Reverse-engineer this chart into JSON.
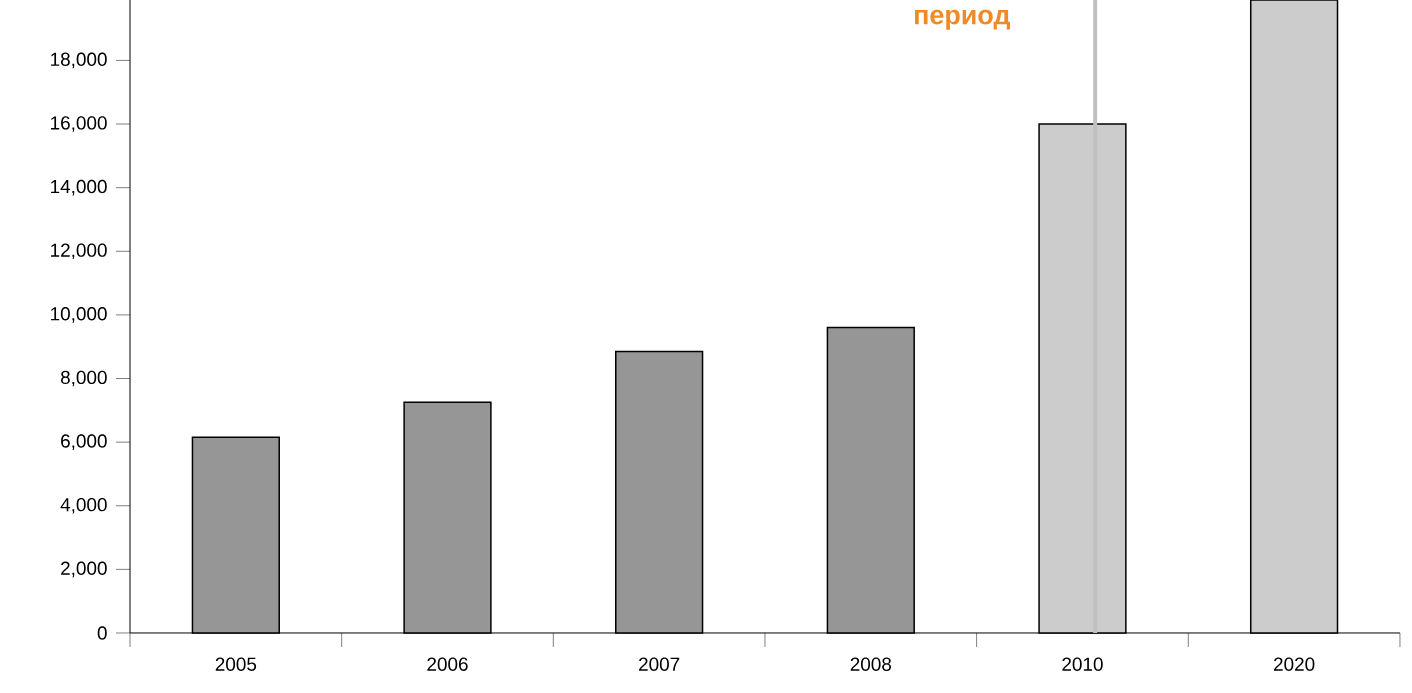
{
  "chart_data": {
    "type": "bar",
    "categories": [
      "2005",
      "2006",
      "2007",
      "2008",
      "2010",
      "2020"
    ],
    "values": [
      6150,
      7250,
      8850,
      9600,
      16000,
      19900
    ],
    "colors": [
      "#969696",
      "#969696",
      "#969696",
      "#969696",
      "#cccccc",
      "#cccccc"
    ],
    "ylim": [
      0,
      19900
    ],
    "yticks": [
      0,
      {
        "value": 2000,
        "label": "2,000"
      },
      {
        "value": 4000,
        "label": "4,000"
      },
      {
        "value": 6000,
        "label": "6,000"
      },
      {
        "value": 8000,
        "label": "8,000"
      },
      {
        "value": 10000,
        "label": "10,000"
      },
      {
        "value": 12000,
        "label": "12,000"
      },
      {
        "value": 14000,
        "label": "14,000"
      },
      {
        "value": 16000,
        "label": "16,000"
      },
      {
        "value": 18000,
        "label": "18,000"
      }
    ],
    "ref_lines": [
      {
        "axis": "x",
        "value": "2010",
        "color": "#c0c0c0"
      }
    ],
    "annotations": [
      "период"
    ],
    "grid": false
  }
}
